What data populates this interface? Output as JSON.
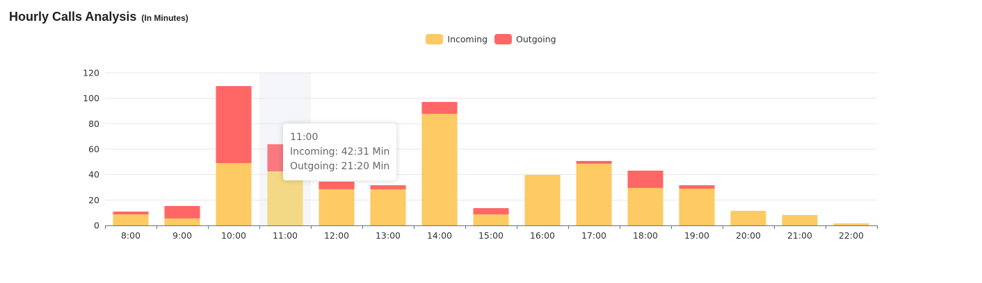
{
  "header": {
    "title": "Hourly Calls Analysis",
    "subtitle": "(In Minutes)"
  },
  "legend": [
    {
      "label": "Incoming",
      "color": "#fdca63"
    },
    {
      "label": "Outgoing",
      "color": "#ff6666"
    }
  ],
  "tooltip": {
    "title": "11:00",
    "line1": "Incoming: 42:31 Min",
    "line2": "Outgoing: 21:20 Min"
  },
  "colors": {
    "incoming": "#fdca63",
    "outgoing": "#ff6666",
    "incoming_hover": "#f3d985",
    "outgoing_hover": "#f87a80",
    "hover_band": "#f5f6fa",
    "grid": "#e6e6e6",
    "axis": "#6e7079"
  },
  "chart_data": {
    "type": "bar",
    "stacked": true,
    "title": "Hourly Calls Analysis (In Minutes)",
    "xlabel": "",
    "ylabel": "",
    "ylim": [
      0,
      120
    ],
    "yticks": [
      0,
      20,
      40,
      60,
      80,
      100,
      120
    ],
    "grid": true,
    "legend_position": "top",
    "categories": [
      "8:00",
      "9:00",
      "10:00",
      "11:00",
      "12:00",
      "13:00",
      "14:00",
      "15:00",
      "16:00",
      "17:00",
      "18:00",
      "19:00",
      "20:00",
      "21:00",
      "22:00"
    ],
    "series": [
      {
        "name": "Incoming",
        "values": [
          8.7,
          5.5,
          49,
          42.52,
          28.4,
          28.4,
          87.8,
          8.7,
          39.8,
          48.5,
          29.5,
          28.9,
          11.5,
          8.2,
          1.6
        ]
      },
      {
        "name": "Outgoing",
        "values": [
          2.2,
          9.8,
          60.6,
          21.33,
          6.0,
          3.2,
          9.3,
          4.9,
          0,
          2.2,
          13.6,
          2.7,
          0,
          0,
          0
        ]
      }
    ],
    "hovered_category": "11:00"
  }
}
